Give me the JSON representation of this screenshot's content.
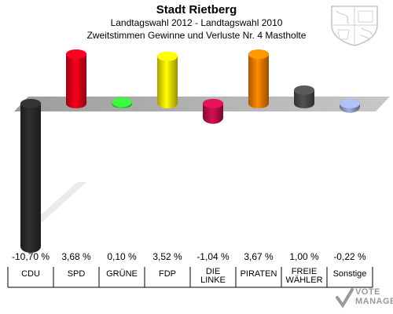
{
  "header": {
    "title": "Stadt Rietberg",
    "subtitle": "Landtagswahl 2012 - Landtagswahl 2010",
    "subtitle2": "Zweitstimmen Gewinne und Verluste Nr. 4 Mastholte"
  },
  "logo": {
    "line1": "VOTE",
    "line2": "MANAGER"
  },
  "chart_data": {
    "type": "bar",
    "title": "Stadt Rietberg",
    "categories": [
      "CDU",
      "SPD",
      "GRÜNE",
      "FDP",
      "DIE LINKE",
      "PIRATEN",
      "FREIE WÄHLER",
      "Sonstige"
    ],
    "category_lines": [
      [
        "CDU"
      ],
      [
        "SPD"
      ],
      [
        "GRÜNE"
      ],
      [
        "FDP"
      ],
      [
        "DIE",
        "LINKE"
      ],
      [
        "PIRATEN"
      ],
      [
        "FREIE",
        "WÄHLER"
      ],
      [
        "Sonstige"
      ]
    ],
    "values": [
      -10.7,
      3.68,
      0.1,
      3.52,
      -1.04,
      3.67,
      1.0,
      -0.22
    ],
    "value_labels": [
      "-10,70 %",
      "3,68 %",
      "0,10 %",
      "3,52 %",
      "-1,04 %",
      "3,67 %",
      "1,00 %",
      "-0,22 %"
    ],
    "colors": [
      "#2b2b2b",
      "#e2001a",
      "#32cd32",
      "#f5e500",
      "#be0f4a",
      "#f57d00",
      "#4a4a4a",
      "#8fa0c8"
    ],
    "ylim": [
      -10.7,
      3.68
    ],
    "grid": false,
    "legend": "none"
  }
}
